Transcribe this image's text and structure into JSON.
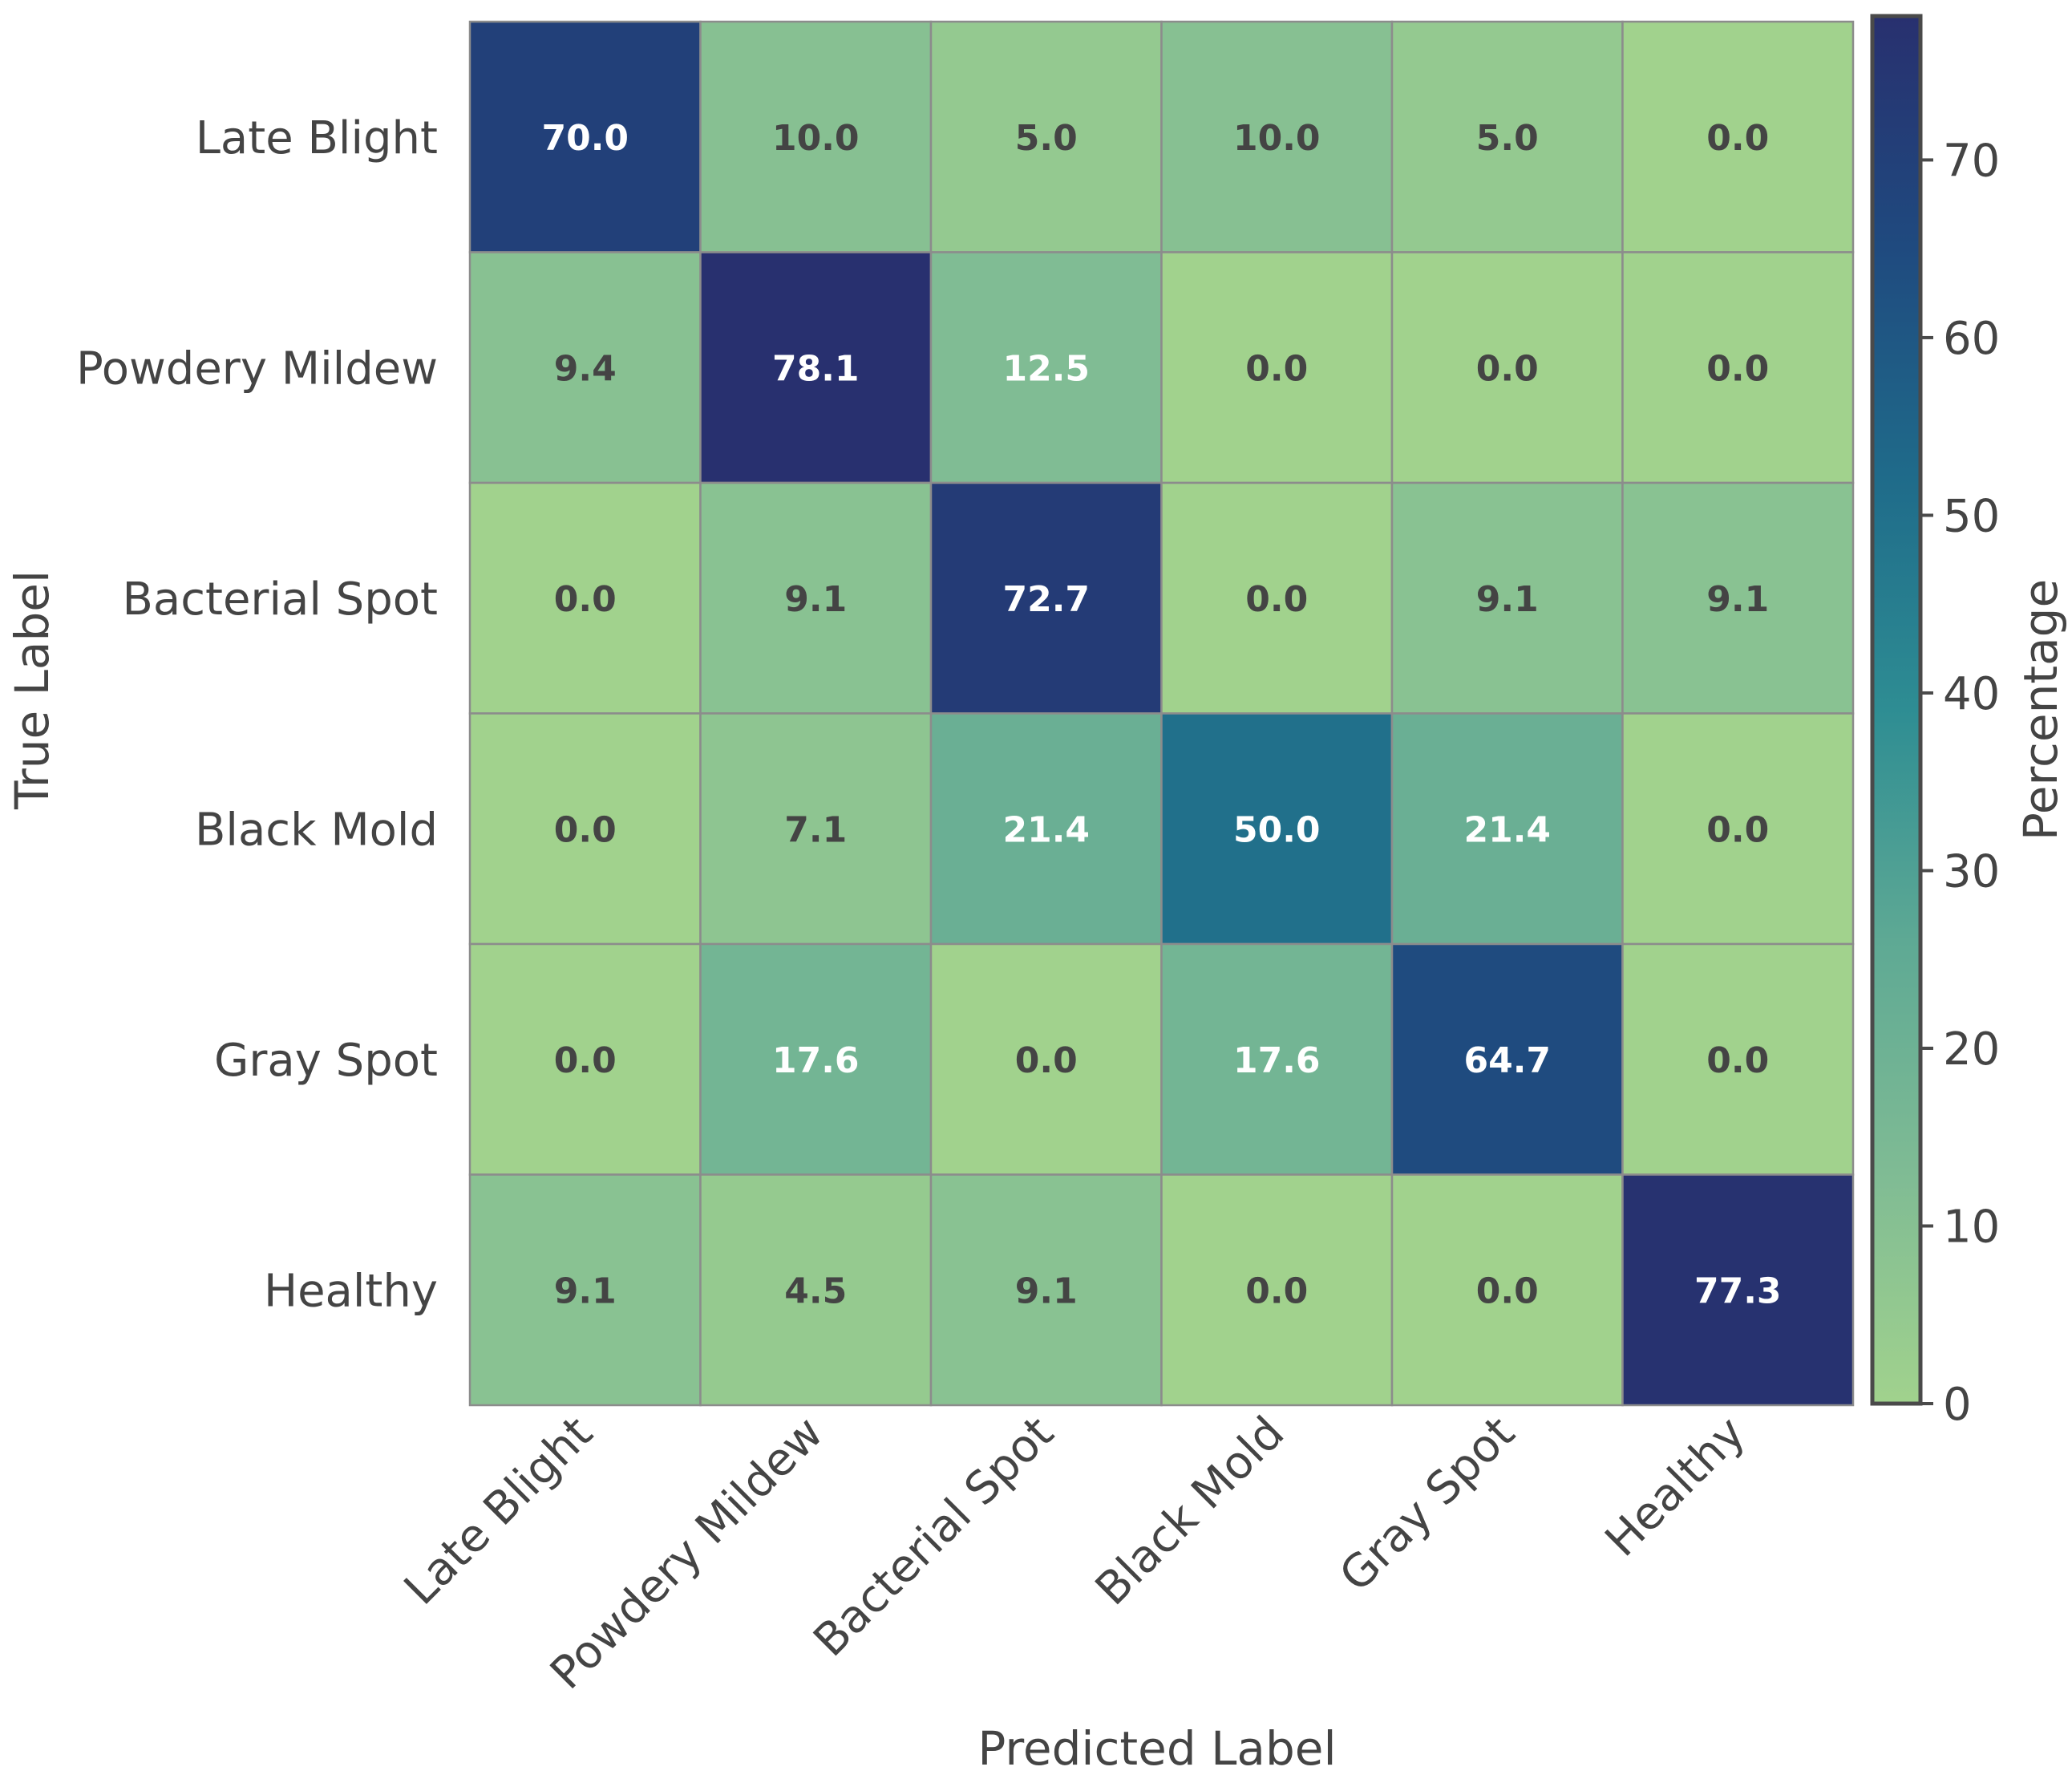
{
  "chart_data": {
    "type": "heatmap",
    "title": "",
    "xlabel": "Predicted Label",
    "ylabel": "True Label",
    "x_categories": [
      "Late Blight",
      "Powdery Mildew",
      "Bacterial Spot",
      "Black Mold",
      "Gray Spot",
      "Healthy"
    ],
    "y_categories": [
      "Late Blight",
      "Powdery Mildew",
      "Bacterial Spot",
      "Black Mold",
      "Gray Spot",
      "Healthy"
    ],
    "values": [
      [
        70.0,
        10.0,
        5.0,
        10.0,
        5.0,
        0.0
      ],
      [
        9.4,
        78.1,
        12.5,
        0.0,
        0.0,
        0.0
      ],
      [
        0.0,
        9.1,
        72.7,
        0.0,
        9.1,
        9.1
      ],
      [
        0.0,
        7.1,
        21.4,
        50.0,
        21.4,
        0.0
      ],
      [
        0.0,
        17.6,
        0.0,
        17.6,
        64.7,
        0.0
      ],
      [
        9.1,
        4.5,
        9.1,
        0.0,
        0.0,
        77.3
      ]
    ],
    "value_format": "0.1f",
    "colorbar": {
      "label": "Percentage",
      "range": [
        0,
        78.1
      ],
      "ticks": [
        0,
        10,
        20,
        30,
        40,
        50,
        60,
        70
      ]
    },
    "colormap": [
      "#a1d28d",
      "#7fbb94",
      "#5ea994",
      "#2e8d93",
      "#1f6b8a",
      "#1f4a7f",
      "#28306f"
    ],
    "text_colors": {
      "light": "#ffffff",
      "dark": "#444444"
    }
  }
}
